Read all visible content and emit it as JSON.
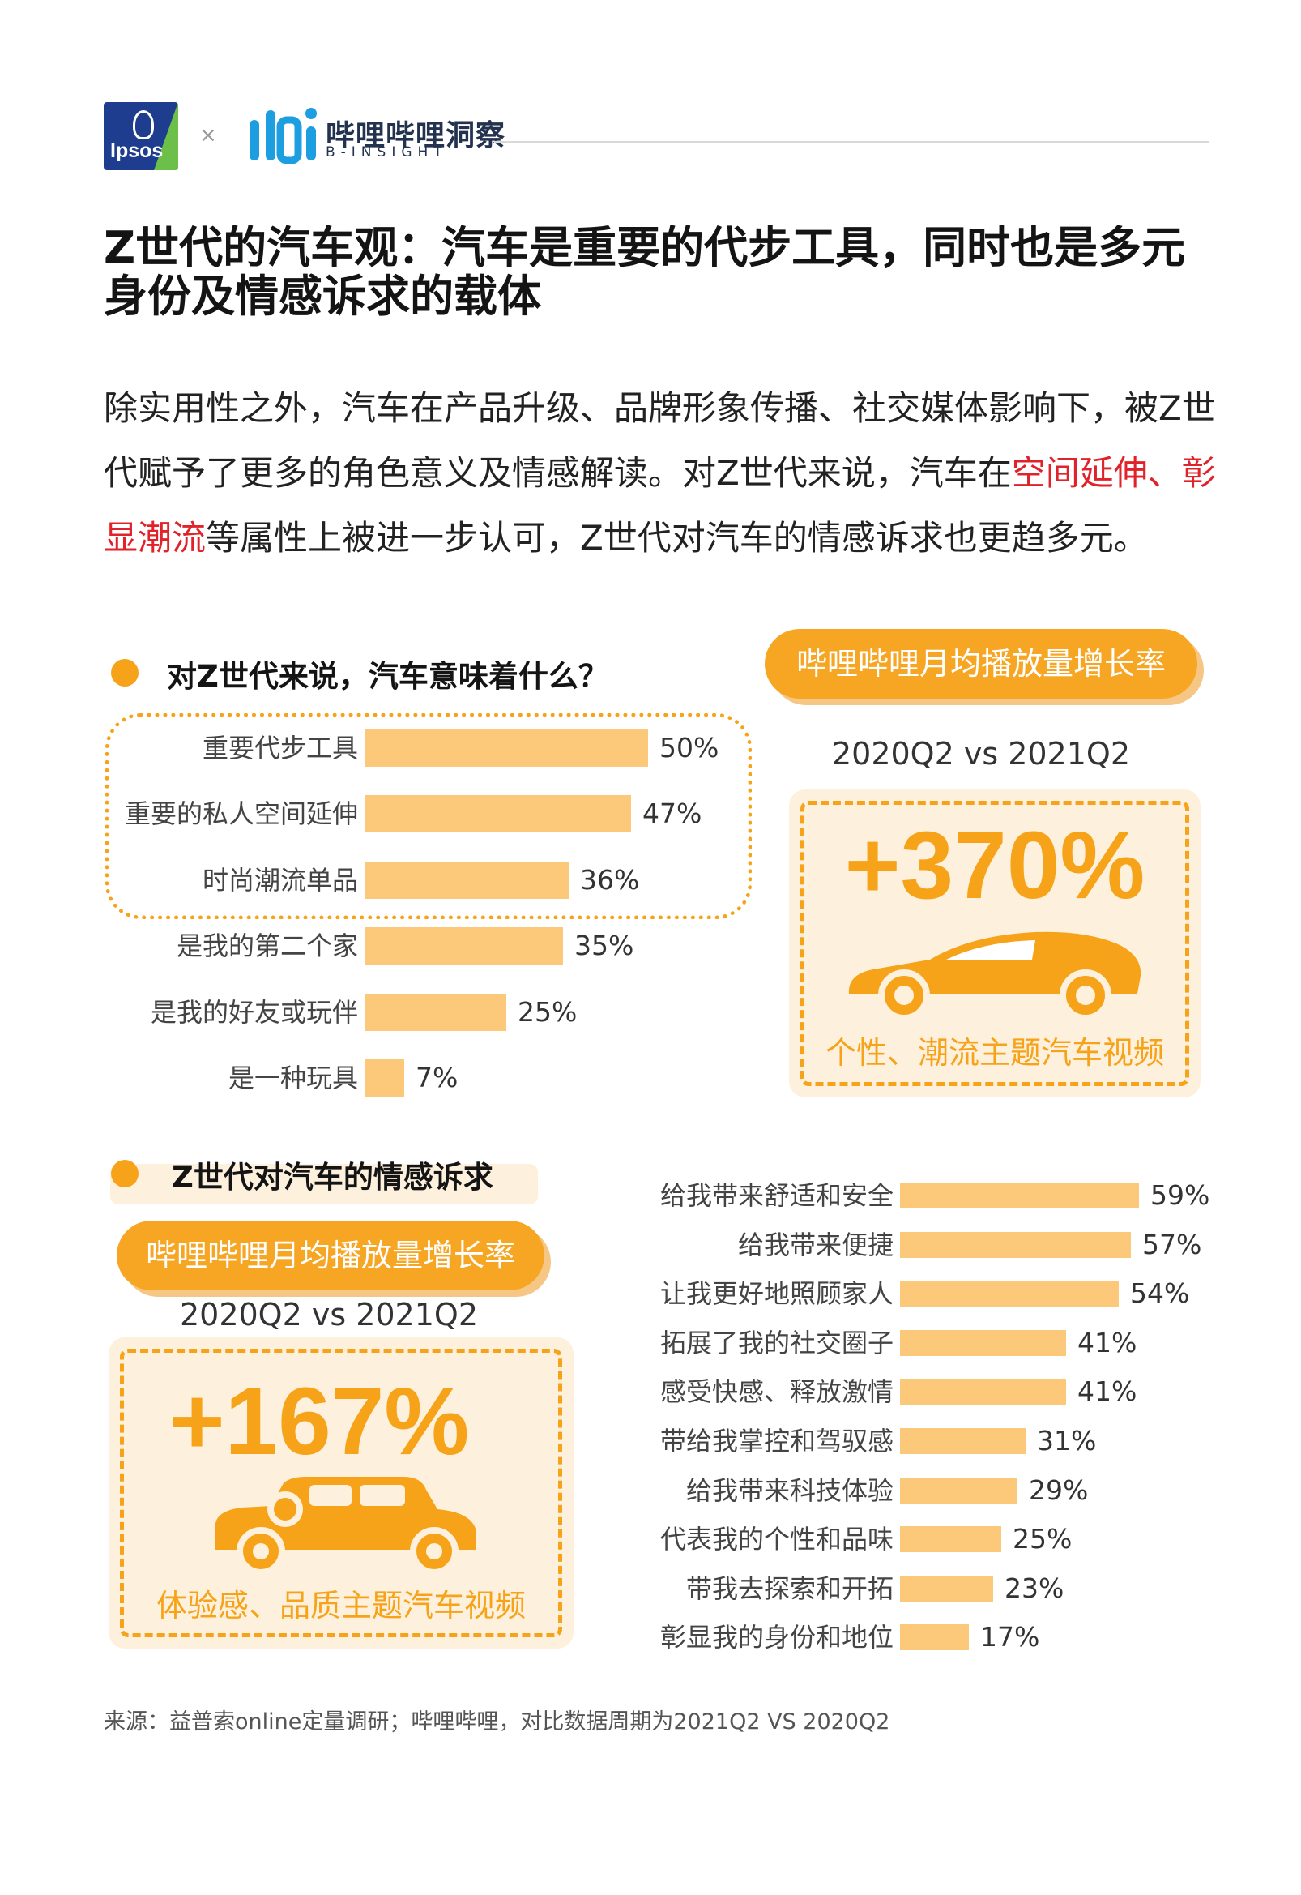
{
  "header": {
    "ipsos_logo_text": "Ipsos",
    "times_sign": "×",
    "bili_name": "哔哩哔哩洞察",
    "bili_sub": "B-INSIGHT"
  },
  "title": "Z世代的汽车观：汽车是重要的代步工具，同时也是多元身份及情感诉求的载体",
  "intro": {
    "part1": "除实用性之外，汽车在产品升级、品牌形象传播、社交媒体影响下，被Z世代赋予了更多的角色意义及情感解读。对Z世代来说，汽车在",
    "highlight": "空间延伸、彰显潮流",
    "part2": "等属性上被进一步认可，Z世代对汽车的情感诉求也更趋多元。"
  },
  "section1": {
    "title": "对Z世代来说，汽车意味着什么？"
  },
  "section2": {
    "title": "Z世代对汽车的情感诉求"
  },
  "stat_top": {
    "pill": "哔哩哔哩月均播放量增长率",
    "compare": "2020Q2 vs 2021Q2",
    "value": "+370%",
    "caption": "个性、潮流主题汽车视频",
    "icon": "sports-car-icon"
  },
  "stat_bottom": {
    "pill": "哔哩哔哩月均播放量增长率",
    "compare": "2020Q2 vs 2021Q2",
    "value": "+167%",
    "caption": "体验感、品质主题汽车视频",
    "icon": "vintage-car-icon"
  },
  "source": "来源：益普索online定量调研；哔哩哔哩，对比数据周期为2021Q2 VS 2020Q2",
  "colors": {
    "accent": "#f6a31a",
    "bar": "#fcc97a",
    "highlight_text": "#e0232a"
  },
  "chart_data": [
    {
      "type": "bar",
      "orientation": "horizontal",
      "title": "对Z世代来说，汽车意味着什么？",
      "categories": [
        "重要代步工具",
        "重要的私人空间延伸",
        "时尚潮流单品",
        "是我的第二个家",
        "是我的好友或玩伴",
        "是一种玩具"
      ],
      "values": [
        50,
        47,
        36,
        35,
        25,
        7
      ],
      "labels": [
        "50%",
        "47%",
        "36%",
        "35%",
        "25%",
        "7%"
      ],
      "unit": "%",
      "highlighted_categories": [
        "重要代步工具",
        "重要的私人空间延伸",
        "时尚潮流单品"
      ]
    },
    {
      "type": "bar",
      "orientation": "horizontal",
      "title": "Z世代对汽车的情感诉求",
      "categories": [
        "给我带来舒适和安全",
        "给我带来便捷",
        "让我更好地照顾家人",
        "拓展了我的社交圈子",
        "感受快感、释放激情",
        "带给我掌控和驾驭感",
        "给我带来科技体验",
        "代表我的个性和品味",
        "带我去探索和开拓",
        "彰显我的身份和地位"
      ],
      "values": [
        59,
        57,
        54,
        41,
        41,
        31,
        29,
        25,
        23,
        17
      ],
      "labels": [
        "59%",
        "57%",
        "54%",
        "41%",
        "41%",
        "31%",
        "29%",
        "25%",
        "23%",
        "17%"
      ],
      "unit": "%"
    }
  ]
}
